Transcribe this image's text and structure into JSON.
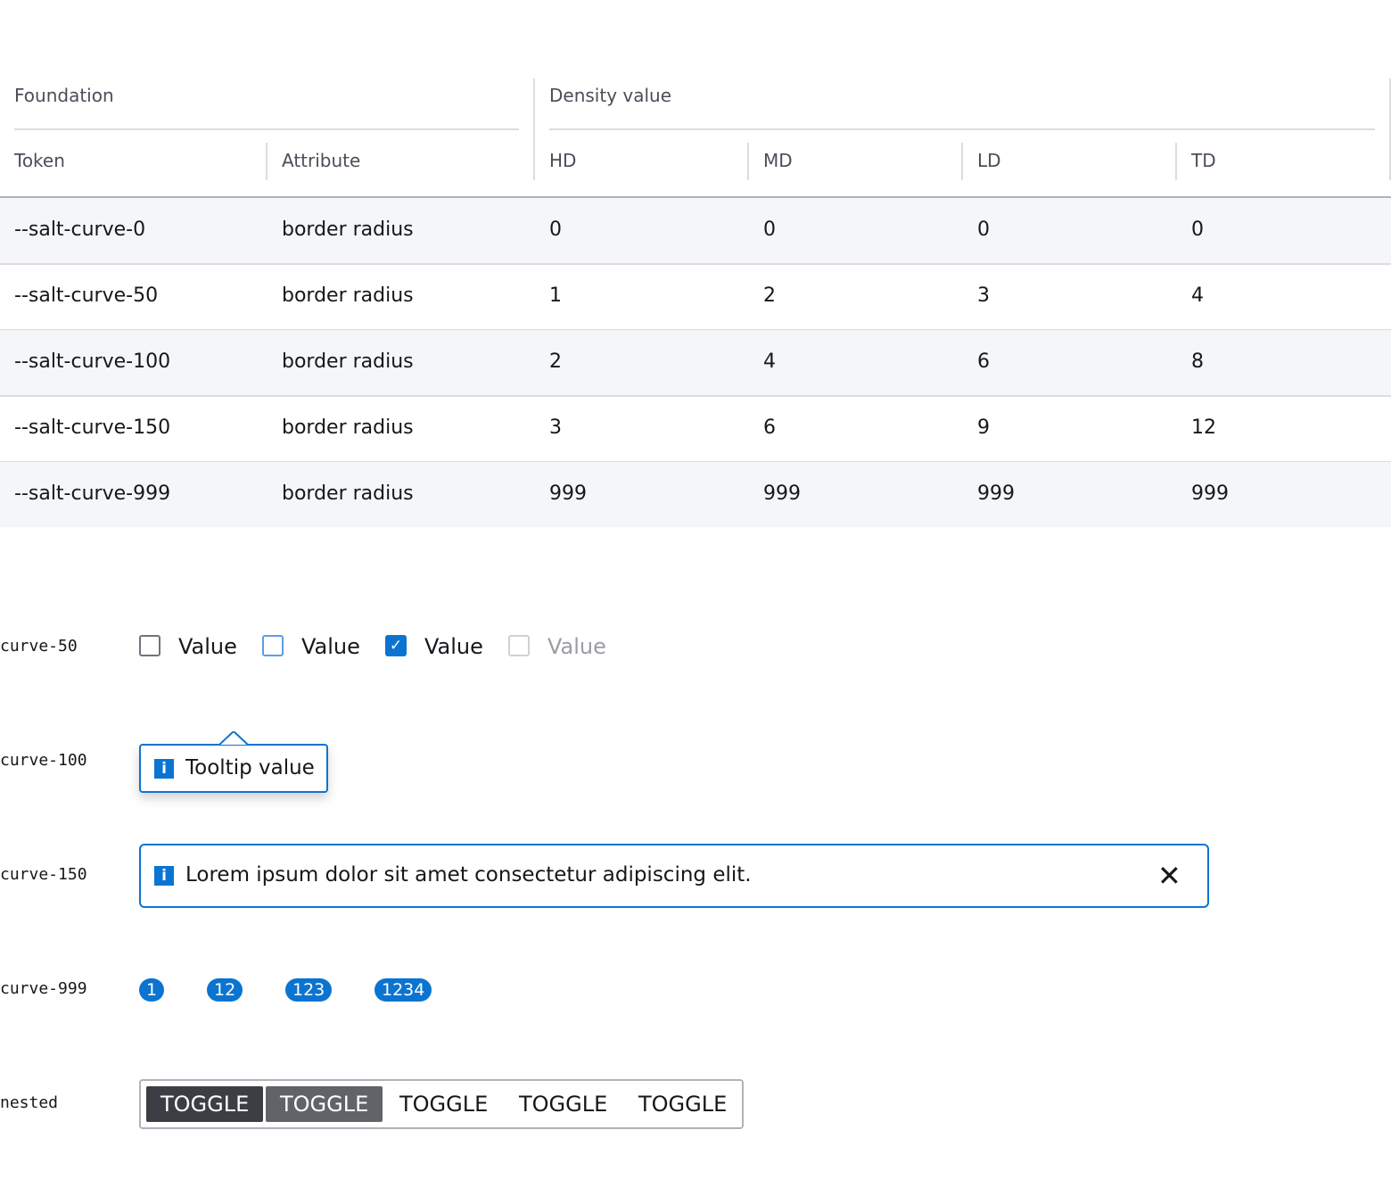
{
  "table": {
    "group_headers": [
      "Foundation",
      "Density value"
    ],
    "columns": [
      "Token",
      "Attribute",
      "HD",
      "MD",
      "LD",
      "TD"
    ],
    "rows": [
      [
        "--salt-curve-0",
        "border radius",
        "0",
        "0",
        "0",
        "0"
      ],
      [
        "--salt-curve-50",
        "border radius",
        "1",
        "2",
        "3",
        "4"
      ],
      [
        "--salt-curve-100",
        "border radius",
        "2",
        "4",
        "6",
        "8"
      ],
      [
        "--salt-curve-150",
        "border radius",
        "3",
        "6",
        "9",
        "12"
      ],
      [
        "--salt-curve-999",
        "border radius",
        "999",
        "999",
        "999",
        "999"
      ]
    ]
  },
  "examples": {
    "labels": [
      "curve-50",
      "curve-100",
      "curve-150",
      "curve-999",
      "nested"
    ],
    "checkboxes": [
      {
        "label": "Value",
        "state": "unchecked"
      },
      {
        "label": "Value",
        "state": "hover"
      },
      {
        "label": "Value",
        "state": "checked"
      },
      {
        "label": "Value",
        "state": "disabled"
      }
    ],
    "tooltip": "Tooltip value",
    "banner": "Lorem ipsum dolor sit amet consectetur adipiscing elit.",
    "badges": [
      "1",
      "12",
      "123",
      "1234"
    ],
    "toggles": [
      "TOGGLE",
      "TOGGLE",
      "TOGGLE",
      "TOGGLE",
      "TOGGLE"
    ]
  },
  "colors": {
    "accent": "#0b74d1",
    "row_alt": "#f5f6f8",
    "toggle_selected": "#3b3f45",
    "toggle_hover": "#606469"
  }
}
